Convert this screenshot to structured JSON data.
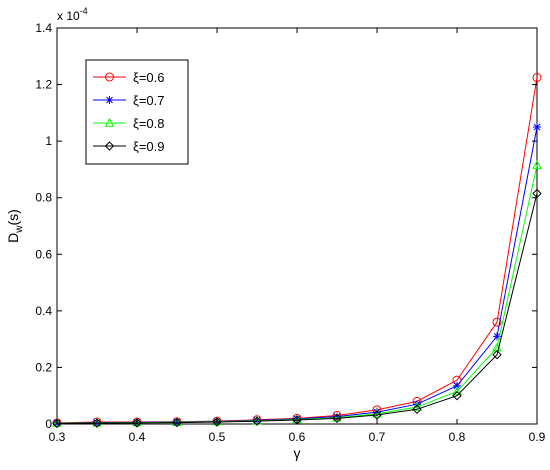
{
  "chart_data": {
    "type": "line",
    "xlabel": "γ",
    "ylabel_main": "D",
    "ylabel_sub": "w",
    "ylabel_tail": "(s)",
    "y_exponent_label": "x 10",
    "y_exponent_power": "-4",
    "xlim": [
      0.3,
      0.9
    ],
    "ylim": [
      0,
      1.4
    ],
    "x_ticks": [
      0.3,
      0.4,
      0.5,
      0.6,
      0.7,
      0.8,
      0.9
    ],
    "x_tick_labels": [
      "0.3",
      "0.4",
      "0.5",
      "0.6",
      "0.7",
      "0.8",
      "0.9"
    ],
    "y_ticks": [
      0,
      0.2,
      0.4,
      0.6,
      0.8,
      1,
      1.2,
      1.4
    ],
    "y_tick_labels": [
      "0",
      "0.2",
      "0.4",
      "0.6",
      "0.8",
      "1",
      "1.2",
      "1.4"
    ],
    "grid": false,
    "legend_position": "top-left",
    "x": [
      0.3,
      0.35,
      0.4,
      0.45,
      0.5,
      0.55,
      0.6,
      0.65,
      0.7,
      0.75,
      0.8,
      0.85,
      0.9
    ],
    "series": [
      {
        "name": "ξ=0.6",
        "color": "#ff0000",
        "marker": "circle",
        "values": [
          0.004,
          0.007,
          0.007,
          0.008,
          0.01,
          0.015,
          0.02,
          0.03,
          0.05,
          0.08,
          0.155,
          0.36,
          1.225
        ]
      },
      {
        "name": "ξ=0.7",
        "color": "#0000ff",
        "marker": "asterisk",
        "values": [
          0.003,
          0.005,
          0.006,
          0.007,
          0.009,
          0.013,
          0.018,
          0.026,
          0.042,
          0.07,
          0.135,
          0.31,
          1.05
        ]
      },
      {
        "name": "ξ=0.8",
        "color": "#00ff00",
        "marker": "triangle",
        "values": [
          0.003,
          0.004,
          0.005,
          0.006,
          0.008,
          0.011,
          0.016,
          0.022,
          0.036,
          0.06,
          0.115,
          0.27,
          0.915
        ]
      },
      {
        "name": "ξ=0.9",
        "color": "#000000",
        "marker": "diamond",
        "values": [
          0.002,
          0.003,
          0.004,
          0.005,
          0.007,
          0.01,
          0.014,
          0.02,
          0.032,
          0.052,
          0.1,
          0.245,
          0.815
        ]
      }
    ]
  }
}
